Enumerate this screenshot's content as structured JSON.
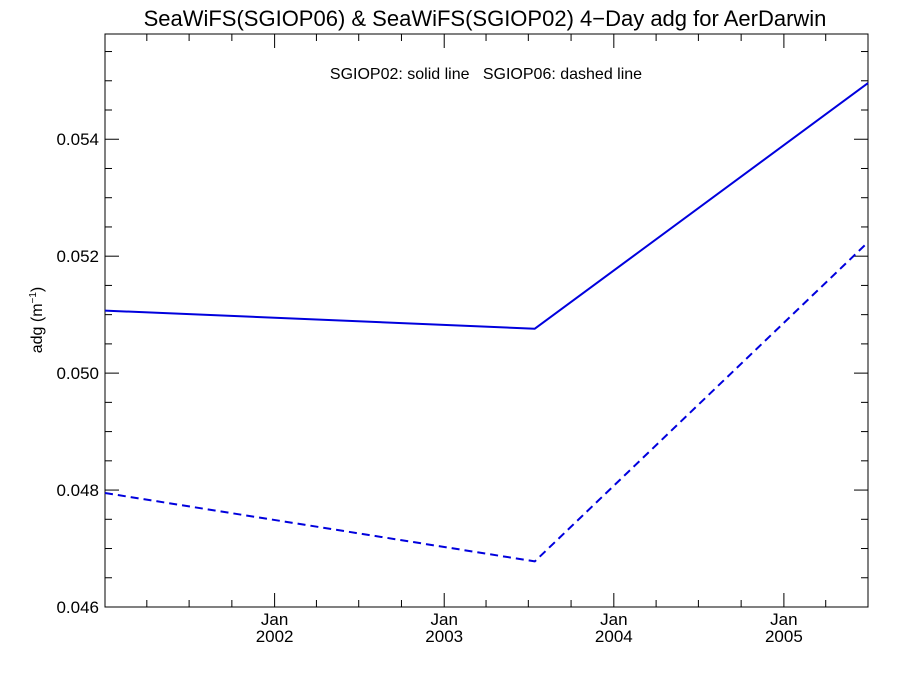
{
  "chart_data": {
    "type": "line",
    "title": "SeaWiFS(SGIOP06) & SeaWiFS(SGIOP02) 4−Day adg for AerDarwin",
    "annotation": "SGIOP02: solid line   SGIOP06: dashed line",
    "ylabel": "adg (m",
    "ylabel_sup": "−1",
    "ylabel_close": ")",
    "x_axis": {
      "type": "date",
      "range": [
        "2001-01-01",
        "2005-07-01"
      ]
    },
    "ylim": [
      0.046,
      0.0558
    ],
    "x_ticks": [
      {
        "date": "2002-01-01",
        "line1": "Jan",
        "line2": "2002"
      },
      {
        "date": "2003-01-01",
        "line1": "Jan",
        "line2": "2003"
      },
      {
        "date": "2004-01-01",
        "line1": "Jan",
        "line2": "2004"
      },
      {
        "date": "2005-01-01",
        "line1": "Jan",
        "line2": "2005"
      }
    ],
    "y_ticks": [
      {
        "value": 0.046,
        "label": "0.046"
      },
      {
        "value": 0.048,
        "label": "0.048"
      },
      {
        "value": 0.05,
        "label": "0.050"
      },
      {
        "value": 0.052,
        "label": "0.052"
      },
      {
        "value": 0.054,
        "label": "0.054"
      }
    ],
    "series": [
      {
        "name": "SGIOP02",
        "style": "solid",
        "color": "#0000dd",
        "points": [
          {
            "x": "2001-01-01",
            "y": 0.05107
          },
          {
            "x": "2003-07-15",
            "y": 0.05076
          },
          {
            "x": "2005-07-01",
            "y": 0.05496
          }
        ]
      },
      {
        "name": "SGIOP06",
        "style": "dashed",
        "color": "#0000dd",
        "points": [
          {
            "x": "2001-01-01",
            "y": 0.04795
          },
          {
            "x": "2003-07-15",
            "y": 0.04678
          },
          {
            "x": "2005-07-01",
            "y": 0.05224
          }
        ]
      }
    ]
  }
}
